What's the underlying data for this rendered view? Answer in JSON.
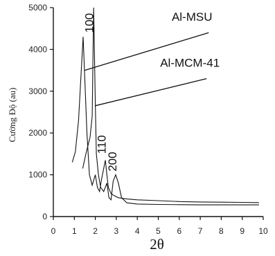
{
  "chart_data": {
    "type": "line",
    "xlabel": "2θ",
    "ylabel": "Cường Độ (au)",
    "xlim": [
      0,
      10
    ],
    "ylim": [
      0,
      5000
    ],
    "x_ticks": [
      "0",
      "1",
      "2",
      "3",
      "4",
      "5",
      "6",
      "7",
      "8",
      "9",
      "10"
    ],
    "y_ticks": [
      "0",
      "1000",
      "2000",
      "3000",
      "4000",
      "5000"
    ],
    "grid": false,
    "legend": "none",
    "series": [
      {
        "name": "Al-MSU",
        "points": [
          [
            0.9,
            1300
          ],
          [
            1.05,
            1550
          ],
          [
            1.2,
            2300
          ],
          [
            1.32,
            3400
          ],
          [
            1.42,
            4300
          ],
          [
            1.5,
            3300
          ],
          [
            1.6,
            2000
          ],
          [
            1.72,
            1000
          ],
          [
            1.85,
            750
          ],
          [
            2.0,
            1000
          ],
          [
            2.1,
            700
          ],
          [
            2.2,
            600
          ],
          [
            2.3,
            900
          ],
          [
            2.4,
            1150
          ],
          [
            2.48,
            1350
          ],
          [
            2.55,
            1000
          ],
          [
            2.62,
            700
          ],
          [
            2.75,
            550
          ],
          [
            2.9,
            500
          ],
          [
            3.1,
            450
          ],
          [
            3.5,
            420
          ],
          [
            4.0,
            400
          ],
          [
            5.0,
            380
          ],
          [
            6.0,
            360
          ],
          [
            7.0,
            350
          ],
          [
            8.0,
            345
          ],
          [
            9.0,
            340
          ],
          [
            9.8,
            335
          ]
        ]
      },
      {
        "name": "Al-MCM-41",
        "points": [
          [
            1.4,
            1150
          ],
          [
            1.55,
            1500
          ],
          [
            1.75,
            1900
          ],
          [
            1.85,
            2400
          ],
          [
            1.92,
            5000
          ],
          [
            2.0,
            2700
          ],
          [
            2.05,
            1500
          ],
          [
            2.15,
            1000
          ],
          [
            2.25,
            700
          ],
          [
            2.4,
            600
          ],
          [
            2.55,
            800
          ],
          [
            2.65,
            450
          ],
          [
            2.75,
            400
          ],
          [
            2.85,
            850
          ],
          [
            2.97,
            1000
          ],
          [
            3.1,
            800
          ],
          [
            3.25,
            450
          ],
          [
            3.5,
            330
          ],
          [
            4.0,
            300
          ],
          [
            5.0,
            290
          ],
          [
            6.0,
            285
          ],
          [
            7.0,
            280
          ],
          [
            8.0,
            280
          ],
          [
            9.0,
            280
          ],
          [
            9.8,
            280
          ]
        ]
      }
    ],
    "annotations": [
      {
        "text": "Al-MSU",
        "series": "Al-MSU",
        "leader_from": [
          1.5,
          3500
        ],
        "leader_to": [
          7.4,
          4400
        ]
      },
      {
        "text": "Al-MCM-41",
        "series": "Al-MCM-41",
        "leader_from": [
          1.98,
          2650
        ],
        "leader_to": [
          7.3,
          3300
        ]
      }
    ],
    "peak_labels": [
      {
        "text": "100",
        "x": 1.9,
        "y": 4400
      },
      {
        "text": "110",
        "x": 2.5,
        "y": 1500
      },
      {
        "text": "200",
        "x": 3.0,
        "y": 1080
      }
    ]
  }
}
